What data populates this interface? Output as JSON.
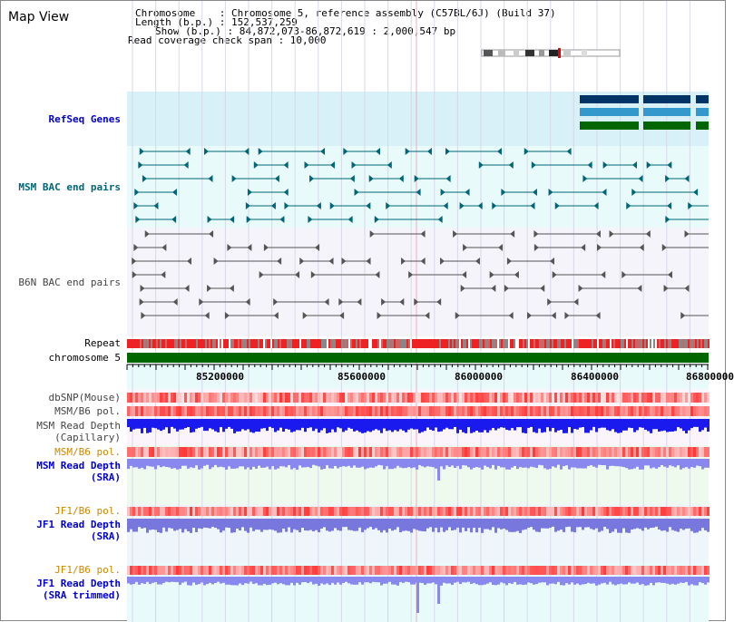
{
  "view_title": "Map View",
  "info": {
    "chromosome_line": "Chromosome    : Chromosome 5, reference assembly (C57BL/6J) (Build 37)",
    "length_line": "Length (b.p.) : 152,537,259",
    "show_line": "Show (b.p.) : 84,872,073-86,872,619 : 2,000,547 bp",
    "span_line": "Read coverage check span : 10,000"
  },
  "tracks": {
    "refseq": "RefSeq Genes",
    "msm_bac": "MSM BAC end pairs",
    "b6n_bac": "B6N BAC end pairs",
    "repeat": "Repeat",
    "chromosome": "chromosome 5",
    "dbsnp": "dbSNP(Mouse)",
    "msm_b6_pol_1": "MSM/B6 pol.",
    "msm_read_depth_cap": "MSM Read Depth\n(Capillary)",
    "msm_b6_pol_2": "MSM/B6 pol.",
    "msm_read_depth_sra": "MSM Read Depth\n(SRA)",
    "jf1_b6_pol_1": "JF1/B6 pol.",
    "jf1_read_depth_sra": "JF1 Read Depth\n(SRA)",
    "jf1_b6_pol_2": "JF1/B6 pol.",
    "jf1_read_depth_trim": "JF1 Read Depth\n(SRA trimmed)"
  },
  "axis_ticks": [
    "85200000",
    "85600000",
    "86000000",
    "86400000",
    "86800000"
  ],
  "colors": {
    "refseq_bg": "#d8f0f8",
    "msm_bg": "#e8fafa",
    "refseq_dark": "#003366",
    "refseq_mid": "#3399cc",
    "refseq_green": "#006600",
    "msm_bac": "#006677",
    "b6n_bac": "#555555",
    "chromosome_bar": "#006600",
    "label_blue": "#0000cc",
    "label_teal": "#006677",
    "label_orange": "#cc8800",
    "label_gray": "#444444"
  }
}
